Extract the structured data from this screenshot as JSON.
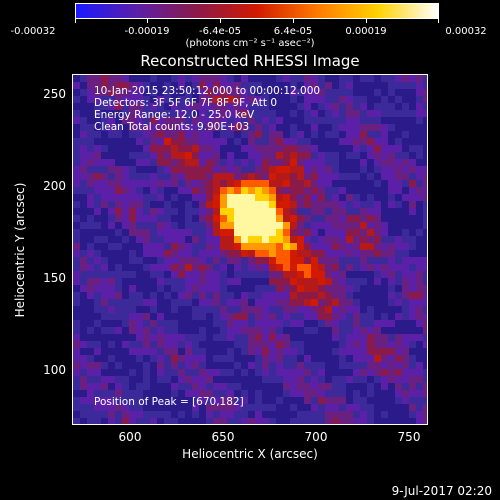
{
  "colorbar": {
    "tick_labels": [
      "-0.00032",
      "-0.00019",
      "-6.4e-05",
      "6.4e-05",
      "0.00019",
      "0.00032"
    ],
    "units": "(photons cm⁻² s⁻¹ asec⁻²)",
    "colors": [
      "#1a1aff",
      "#5b1fa8",
      "#8a1a4a",
      "#d11a00",
      "#ff7a00",
      "#ffd200",
      "#ffffff"
    ]
  },
  "map": {
    "title": "Reconstructed RHESSI Image",
    "xlabel": "Heliocentric X (arcsec)",
    "ylabel": "Heliocentric Y (arcsec)",
    "x_tick_labels": [
      "600",
      "650",
      "700",
      "750"
    ],
    "y_tick_labels": [
      "100",
      "150",
      "200",
      "250"
    ],
    "x_range": [
      566,
      761
    ],
    "y_range": [
      69,
      264
    ],
    "peak_xy": [
      670,
      182
    ],
    "info_lines": [
      "10-Jan-2015 23:50:12.000 to 00:00:12.000",
      "Detectors: 3F 5F 6F 7F 8F 9F, Att 0",
      "Energy Range: 12.0 - 25.0 keV",
      "Clean      Total counts: 9.90E+03"
    ],
    "peak_label": "Position of Peak = [670,182]"
  },
  "footer": {
    "date": "9-Jul-2017 02:20"
  }
}
